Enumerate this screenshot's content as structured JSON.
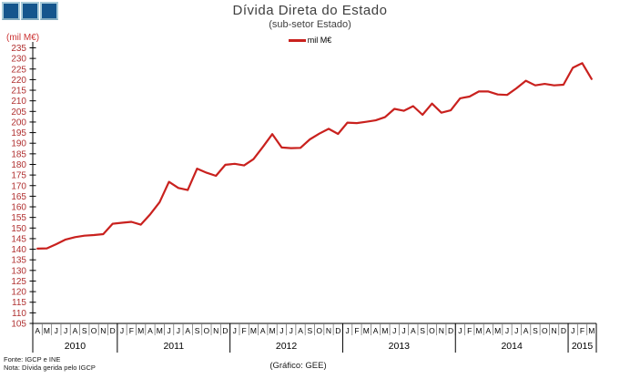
{
  "header": {
    "title": "Dívida Direta do Estado",
    "subtitle": "(sub-setor Estado)"
  },
  "legend": {
    "label": "mil M€"
  },
  "y_axis": {
    "unit_label": "(mil M€)",
    "min": 105,
    "max": 235,
    "step": 5,
    "label_color": "#b03030"
  },
  "footer": {
    "source": "Fonte: IGCP e INE",
    "note": "Nota: Dívida gerida pelo IGCP",
    "credit": "(Gráfico: GEE)"
  },
  "logo": {
    "square_count": 3,
    "fill": "#15568d",
    "border": "#a8cbd9"
  },
  "chart_data": {
    "type": "line",
    "title": "Dívida Direta do Estado",
    "subtitle": "(sub-setor Estado)",
    "series_name": "mil M€",
    "ylabel": "(mil M€)",
    "ylim": [
      105,
      235
    ],
    "ytick_step": 5,
    "line_color": "#c9211e",
    "x_start": "2010-04",
    "x_end": "2015-03",
    "month_letters": [
      "A",
      "M",
      "J",
      "J",
      "A",
      "S",
      "O",
      "N",
      "D",
      "J",
      "F",
      "M",
      "A",
      "M",
      "J",
      "J",
      "A",
      "S",
      "O",
      "N",
      "D",
      "J",
      "F",
      "M",
      "A",
      "M",
      "J",
      "J",
      "A",
      "S",
      "O",
      "N",
      "D",
      "J",
      "F",
      "M",
      "A",
      "M",
      "J",
      "J",
      "A",
      "S",
      "O",
      "N",
      "D",
      "J",
      "F",
      "M",
      "A",
      "M",
      "J",
      "J",
      "A",
      "S",
      "O",
      "N",
      "D",
      "J",
      "F",
      "M"
    ],
    "years": [
      {
        "label": "2010",
        "months": 9
      },
      {
        "label": "2011",
        "months": 12
      },
      {
        "label": "2012",
        "months": 12
      },
      {
        "label": "2013",
        "months": 12
      },
      {
        "label": "2014",
        "months": 12
      },
      {
        "label": "2015",
        "months": 3
      }
    ],
    "values": [
      140.3,
      140.4,
      142.4,
      144.6,
      145.7,
      146.4,
      146.7,
      147.1,
      152.0,
      152.5,
      152.9,
      151.6,
      156.5,
      162.2,
      171.8,
      168.9,
      167.9,
      178.0,
      176.1,
      174.6,
      179.8,
      180.3,
      179.5,
      182.5,
      188.3,
      194.3,
      188.0,
      187.7,
      187.8,
      191.8,
      194.5,
      196.8,
      194.4,
      199.7,
      199.5,
      200.1,
      200.8,
      202.3,
      206.2,
      205.3,
      207.5,
      203.4,
      208.7,
      204.4,
      205.5,
      211.2,
      212.0,
      214.4,
      214.4,
      213.0,
      212.8,
      215.9,
      219.5,
      217.3,
      218.0,
      217.3,
      217.6,
      225.6,
      227.8,
      220.3
    ]
  }
}
